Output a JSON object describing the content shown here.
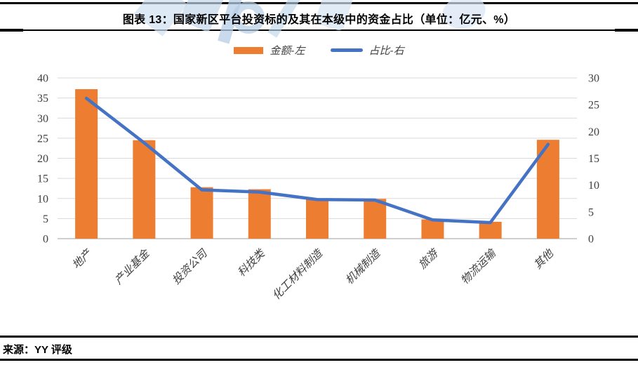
{
  "title": "图表 13：国家新区平台投资标的及其在本级中的资金占比（单位：亿元、%）",
  "source": "来源：YY 评级",
  "colors": {
    "bar": "#ED7D31",
    "line": "#4472C4",
    "gridline": "#D9D9D9",
    "axis_baseline": "#BFBFBF",
    "text": "#404040",
    "rule": "#000000",
    "watermark": "#BCD2E8"
  },
  "chart_data": {
    "type": "bar",
    "subtype": "bar+line combo, dual axis",
    "title": "图表 13：国家新区平台投资标的及其在本级中的资金占比（单位：亿元、%）",
    "categories": [
      "地产",
      "产业基金",
      "投资公司",
      "科技类",
      "化工材料制造",
      "机械制造",
      "旅游",
      "物流运输",
      "其他"
    ],
    "series": [
      {
        "name": "金额-左",
        "type": "bar",
        "axis": "left",
        "color": "#ED7D31",
        "values": [
          37.2,
          24.5,
          12.8,
          12.3,
          10.0,
          9.9,
          4.8,
          4.2,
          24.6
        ]
      },
      {
        "name": "占比-右",
        "type": "line",
        "axis": "right",
        "color": "#4472C4",
        "values": [
          26.2,
          17.9,
          9.1,
          8.7,
          7.3,
          7.2,
          3.5,
          3.0,
          17.6
        ]
      }
    ],
    "left_axis": {
      "min": 0,
      "max": 40,
      "step": 5,
      "ticks": [
        0,
        5,
        10,
        15,
        20,
        25,
        30,
        35,
        40
      ]
    },
    "right_axis": {
      "min": 0,
      "max": 30,
      "step": 5,
      "ticks": [
        0,
        5,
        10,
        15,
        20,
        25,
        30
      ]
    },
    "grid": true,
    "legend_position": "top",
    "xlabel": "",
    "ylabel": ""
  }
}
